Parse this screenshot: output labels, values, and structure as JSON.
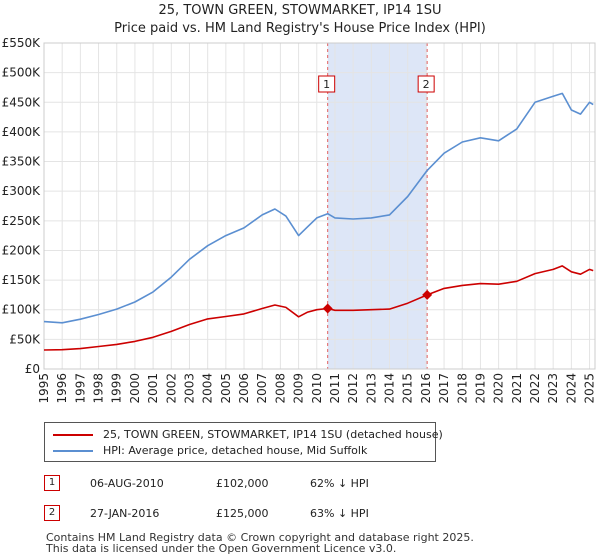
{
  "title": "25, TOWN GREEN, STOWMARKET, IP14 1SU",
  "subtitle": "Price paid vs. HM Land Registry's House Price Index (HPI)",
  "colors": {
    "property": "#cc0000",
    "hpi": "#5b8fd1",
    "band": "#dde6f7",
    "marker": "#cc0000"
  },
  "chart_data": {
    "type": "line",
    "xlim": [
      1995,
      2025.3
    ],
    "ylim": [
      0,
      550000
    ],
    "yticks": [
      0,
      50000,
      100000,
      150000,
      200000,
      250000,
      300000,
      350000,
      400000,
      450000,
      500000,
      550000
    ],
    "ytick_labels": [
      "£0",
      "£50K",
      "£100K",
      "£150K",
      "£200K",
      "£250K",
      "£300K",
      "£350K",
      "£400K",
      "£450K",
      "£500K",
      "£550K"
    ],
    "xticks": [
      1995,
      1996,
      1997,
      1998,
      1999,
      2000,
      2001,
      2002,
      2003,
      2004,
      2005,
      2006,
      2007,
      2008,
      2009,
      2010,
      2011,
      2012,
      2013,
      2014,
      2015,
      2016,
      2017,
      2018,
      2019,
      2020,
      2021,
      2022,
      2023,
      2024,
      2025
    ],
    "series": [
      {
        "name": "25, TOWN GREEN, STOWMARKET, IP14 1SU (detached house)",
        "color": "#cc0000",
        "x": [
          1995,
          1996,
          1997,
          1998,
          1999,
          2000,
          2001,
          2002,
          2003,
          2004,
          2005,
          2006,
          2007,
          2007.7,
          2008.3,
          2009.0,
          2009.5,
          2010.0,
          2010.6,
          2011,
          2012,
          2013,
          2014,
          2015,
          2016.07,
          2017,
          2018,
          2019,
          2020,
          2021,
          2022,
          2023,
          2023.5,
          2024,
          2024.5,
          2025.0,
          2025.2
        ],
        "y": [
          32000,
          32500,
          34500,
          38000,
          41500,
          46500,
          53500,
          63500,
          75000,
          84500,
          88500,
          93000,
          102000,
          108000,
          104000,
          88000,
          96000,
          100000,
          102000,
          99000,
          99000,
          100000,
          101000,
          111000,
          125000,
          136000,
          141000,
          144000,
          143000,
          148000,
          161000,
          168000,
          174000,
          164000,
          160000,
          168000,
          166000
        ]
      },
      {
        "name": "HPI: Average price, detached house, Mid Suffolk",
        "color": "#5b8fd1",
        "x": [
          1995,
          1996,
          1997,
          1998,
          1999,
          2000,
          2001,
          2002,
          2003,
          2004,
          2005,
          2006,
          2007,
          2007.7,
          2008.3,
          2009.0,
          2009.5,
          2010.0,
          2010.6,
          2011,
          2012,
          2013,
          2014,
          2015,
          2016.07,
          2017,
          2018,
          2019,
          2020,
          2021,
          2022,
          2023,
          2023.5,
          2024,
          2024.5,
          2025.0,
          2025.2
        ],
        "y": [
          80000,
          78000,
          84000,
          92000,
          101000,
          113000,
          130000,
          155000,
          185000,
          208000,
          225000,
          238000,
          260000,
          270000,
          258000,
          225000,
          240000,
          255000,
          262000,
          255000,
          253000,
          255000,
          260000,
          291000,
          335000,
          364000,
          383000,
          390000,
          385000,
          405000,
          450000,
          460000,
          465000,
          437000,
          430000,
          450000,
          446000
        ]
      }
    ],
    "sales": [
      {
        "label": "1",
        "x": 2010.6,
        "y": 102000
      },
      {
        "label": "2",
        "x": 2016.07,
        "y": 125000
      }
    ],
    "band": [
      2010.6,
      2016.07
    ]
  },
  "legend": {
    "property": "25, TOWN GREEN, STOWMARKET, IP14 1SU (detached house)",
    "hpi": "HPI: Average price, detached house, Mid Suffolk"
  },
  "transactions": [
    {
      "num": "1",
      "date": "06-AUG-2010",
      "price": "£102,000",
      "hpi": "62% ↓ HPI"
    },
    {
      "num": "2",
      "date": "27-JAN-2016",
      "price": "£125,000",
      "hpi": "63% ↓ HPI"
    }
  ],
  "footer": "Contains HM Land Registry data © Crown copyright and database right 2025.\nThis data is licensed under the Open Government Licence v3.0."
}
